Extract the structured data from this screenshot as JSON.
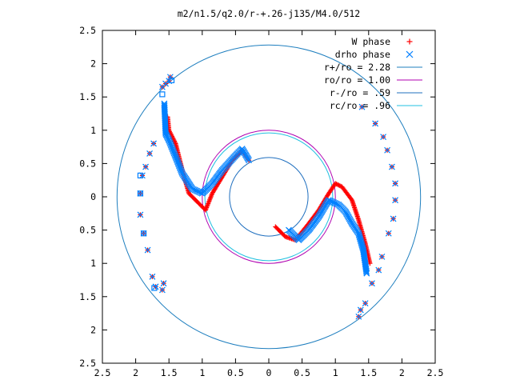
{
  "chart_data": {
    "type": "scatter",
    "title": "m2/n1.5/q2.0/r-+.26-j135/M4.0/512",
    "xlabel": "",
    "ylabel": "",
    "xlim": [
      -2.5,
      2.5
    ],
    "ylim": [
      -2.5,
      2.5
    ],
    "x_ticks": [
      "2.5",
      "2",
      "1.5",
      "1",
      "0.5",
      "0",
      "0.5",
      "1",
      "1.5",
      "2",
      "2.5"
    ],
    "y_ticks": [
      "2.5",
      "2",
      "1.5",
      "1",
      "0.5",
      "0",
      "0.5",
      "1",
      "1.5",
      "2",
      "2.5"
    ],
    "legend_position": "top-right",
    "grid": false,
    "series": [
      {
        "name": "W phase",
        "kind": "points",
        "marker": "plus",
        "color": "#ff0000"
      },
      {
        "name": "drho phase",
        "kind": "points",
        "marker": "cross",
        "color": "#0080ff"
      },
      {
        "name": "r+/ro = 2.28",
        "kind": "circle",
        "radius": 2.28,
        "color": "#1f7fbf"
      },
      {
        "name": "ro/ro = 1.00",
        "kind": "circle",
        "radius": 1.0,
        "color": "#b000b0"
      },
      {
        "name": "r-/ro = .59",
        "kind": "circle",
        "radius": 0.59,
        "color": "#1f6fbf"
      },
      {
        "name": "rc/ro = .96",
        "kind": "circle",
        "radius": 0.96,
        "color": "#20c0e0"
      }
    ],
    "sparse_points": [
      [
        -1.48,
        1.8
      ],
      [
        -1.5,
        1.74
      ],
      [
        -1.55,
        1.7
      ],
      [
        -1.6,
        1.65
      ],
      [
        -1.73,
        0.8
      ],
      [
        -1.79,
        0.65
      ],
      [
        -1.85,
        0.45
      ],
      [
        -1.9,
        0.32
      ],
      [
        -1.93,
        0.05
      ],
      [
        -1.93,
        -0.27
      ],
      [
        -1.88,
        -0.55
      ],
      [
        -1.82,
        -0.8
      ],
      [
        -1.75,
        -1.2
      ],
      [
        -1.7,
        -1.35
      ],
      [
        -1.6,
        -1.4
      ],
      [
        -1.58,
        -1.3
      ],
      [
        1.4,
        1.35
      ],
      [
        1.6,
        1.1
      ],
      [
        1.72,
        0.9
      ],
      [
        1.78,
        0.7
      ],
      [
        1.85,
        0.45
      ],
      [
        1.9,
        0.2
      ],
      [
        1.9,
        -0.05
      ],
      [
        1.87,
        -0.33
      ],
      [
        1.8,
        -0.55
      ],
      [
        1.7,
        -0.9
      ],
      [
        1.65,
        -1.1
      ],
      [
        1.55,
        -1.3
      ],
      [
        1.45,
        -1.6
      ],
      [
        1.38,
        -1.7
      ],
      [
        1.35,
        -1.8
      ]
    ],
    "squares": [
      [
        -1.6,
        1.54
      ],
      [
        -1.46,
        1.75
      ],
      [
        -1.93,
        0.32
      ],
      [
        -1.93,
        0.05
      ],
      [
        -1.88,
        -0.55
      ],
      [
        -1.72,
        -1.37
      ]
    ],
    "w_curves": [
      [
        [
          -1.52,
          1.2
        ],
        [
          -1.5,
          1.0
        ],
        [
          -1.4,
          0.8
        ],
        [
          -1.3,
          0.4
        ],
        [
          -1.2,
          0.05
        ],
        [
          -1.05,
          -0.1
        ],
        [
          -0.95,
          -0.2
        ],
        [
          -0.85,
          0.05
        ],
        [
          -0.7,
          0.3
        ],
        [
          -0.55,
          0.55
        ],
        [
          -0.4,
          0.7
        ],
        [
          -0.3,
          0.55
        ]
      ],
      [
        [
          0.1,
          -0.45
        ],
        [
          0.25,
          -0.6
        ],
        [
          0.4,
          -0.65
        ],
        [
          0.6,
          -0.4
        ],
        [
          0.75,
          -0.2
        ],
        [
          0.9,
          0.05
        ],
        [
          1.0,
          0.2
        ],
        [
          1.1,
          0.15
        ],
        [
          1.25,
          -0.05
        ],
        [
          1.35,
          -0.35
        ],
        [
          1.45,
          -0.7
        ],
        [
          1.52,
          -1.0
        ]
      ]
    ],
    "d_curves": [
      [
        [
          -1.57,
          1.4
        ],
        [
          -1.55,
          0.95
        ],
        [
          -1.5,
          0.85
        ],
        [
          -1.4,
          0.6
        ],
        [
          -1.3,
          0.35
        ],
        [
          -1.15,
          0.12
        ],
        [
          -1.0,
          0.05
        ],
        [
          -0.85,
          0.2
        ],
        [
          -0.7,
          0.4
        ],
        [
          -0.5,
          0.62
        ],
        [
          -0.4,
          0.72
        ],
        [
          -0.3,
          0.55
        ]
      ],
      [
        [
          0.3,
          -0.5
        ],
        [
          0.45,
          -0.65
        ],
        [
          0.6,
          -0.5
        ],
        [
          0.75,
          -0.3
        ],
        [
          0.9,
          -0.05
        ],
        [
          1.05,
          -0.12
        ],
        [
          1.15,
          -0.22
        ],
        [
          1.25,
          -0.4
        ],
        [
          1.35,
          -0.55
        ],
        [
          1.42,
          -0.8
        ],
        [
          1.47,
          -1.15
        ]
      ]
    ]
  }
}
